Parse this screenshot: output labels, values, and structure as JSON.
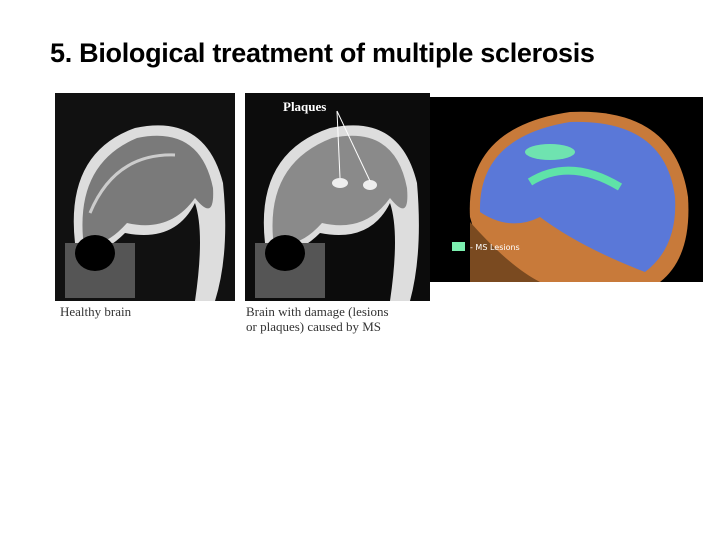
{
  "title": "5. Biological treatment of multiple sclerosis",
  "images": [
    {
      "caption": [
        "Healthy brain"
      ]
    },
    {
      "annotation": "Plaques",
      "caption": [
        "Brain with damage (lesions",
        "or plaques) caused by MS"
      ]
    },
    {
      "legend": "- MS Lesions"
    }
  ]
}
